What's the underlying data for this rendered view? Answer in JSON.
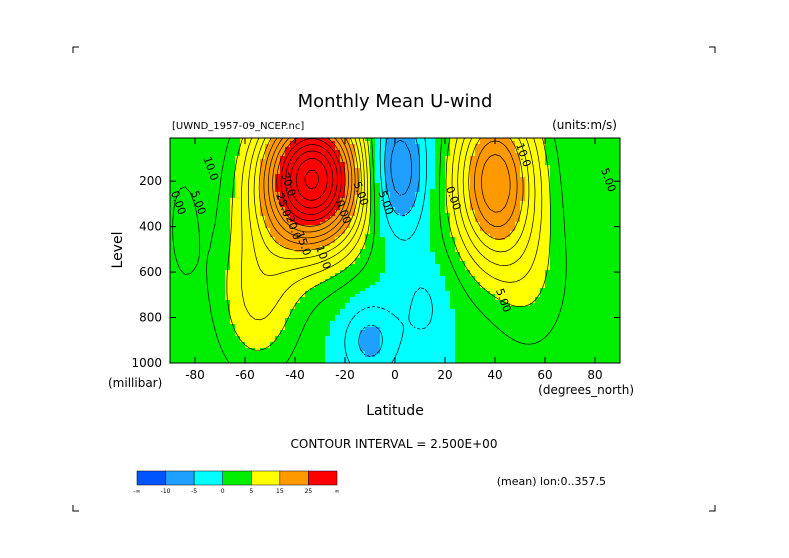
{
  "chart_data": {
    "type": "contour",
    "title": "Monthly Mean U-wind",
    "dataset": "[UWND_1957-09_NCEP.nc]",
    "units": "(units:m/s)",
    "xlabel": "Latitude",
    "xunit": "(degrees_north)",
    "ylabel": "Level",
    "yunit": "(millibar)",
    "xlim": [
      -90,
      90
    ],
    "ylim": [
      1000,
      10
    ],
    "xticks": [
      -80,
      -60,
      -40,
      -20,
      0,
      20,
      40,
      60,
      80
    ],
    "yticks": [
      200,
      400,
      600,
      800,
      1000
    ],
    "contour_interval_text": "CONTOUR INTERVAL = 2.500E+00",
    "mean_text": "(mean) lon:0..357.5",
    "contour_labels": [
      {
        "text": "10.0",
        "lat": -75,
        "lev": 150
      },
      {
        "text": "0.00",
        "lat": -88,
        "lev": 300
      },
      {
        "text": "5.00",
        "lat": -80,
        "lev": 300
      },
      {
        "text": "30.0",
        "lat": -44,
        "lev": 220
      },
      {
        "text": "25.0",
        "lat": -46,
        "lev": 310
      },
      {
        "text": "20.0",
        "lat": -42,
        "lev": 410
      },
      {
        "text": "15.0",
        "lat": -38,
        "lev": 480
      },
      {
        "text": "10.0",
        "lat": -30,
        "lev": 540
      },
      {
        "text": "0.00",
        "lat": -22,
        "lev": 340
      },
      {
        "text": "5.00",
        "lat": -15,
        "lev": 260
      },
      {
        "text": "5.00",
        "lat": -5,
        "lev": 300
      },
      {
        "text": "0.00",
        "lat": 22,
        "lev": 280
      },
      {
        "text": "10.0",
        "lat": 50,
        "lev": 90
      },
      {
        "text": "5.00",
        "lat": 84,
        "lev": 200
      },
      {
        "text": "5.00",
        "lat": 42,
        "lev": 730
      }
    ],
    "colorbar": {
      "colors": [
        "#0055ff",
        "#1fa0ff",
        "#00ffff",
        "#00ee00",
        "#ffff00",
        "#ff9900",
        "#ff0000"
      ],
      "labels": [
        "-∞",
        "-10",
        "-5",
        "0",
        "5",
        "15",
        "25",
        "∞"
      ]
    },
    "fields": {
      "southern_jet": {
        "lat": -33,
        "lev": 190,
        "peak": 38
      },
      "northern_jet": {
        "lat": 40,
        "lev": 200,
        "peak": 22
      },
      "easterlies": {
        "lat": 0,
        "lev": 150,
        "peak": -12
      }
    }
  },
  "levels": {
    "fill_breaks": [
      -10,
      -5,
      0,
      5,
      15,
      25
    ],
    "line_step": 2.5
  }
}
